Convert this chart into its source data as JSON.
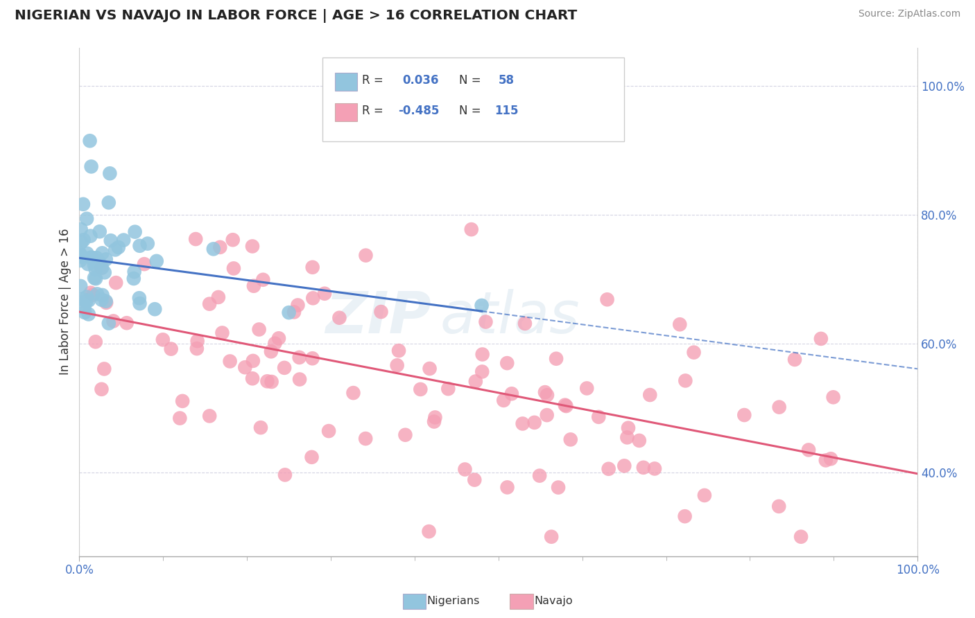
{
  "title": "NIGERIAN VS NAVAJO IN LABOR FORCE | AGE > 16 CORRELATION CHART",
  "source": "Source: ZipAtlas.com",
  "ylabel": "In Labor Force | Age > 16",
  "xlim": [
    0.0,
    1.0
  ],
  "ylim": [
    0.27,
    1.06
  ],
  "xtick_labels": [
    "0.0%",
    "100.0%"
  ],
  "ytick_labels": [
    "40.0%",
    "60.0%",
    "80.0%",
    "100.0%"
  ],
  "ytick_vals": [
    0.4,
    0.6,
    0.8,
    1.0
  ],
  "blue_R": "0.036",
  "blue_N": "58",
  "pink_R": "-0.485",
  "pink_N": "115",
  "blue_color": "#92c5de",
  "pink_color": "#f4a0b5",
  "blue_line_color": "#4472c4",
  "pink_line_color": "#e05878",
  "background_color": "#ffffff",
  "grid_color": "#d0d0e0",
  "label_color": "#4472c4",
  "title_color": "#222222",
  "watermark_zip_color": "#c8d8e8",
  "watermark_atlas_color": "#c8d8e8"
}
